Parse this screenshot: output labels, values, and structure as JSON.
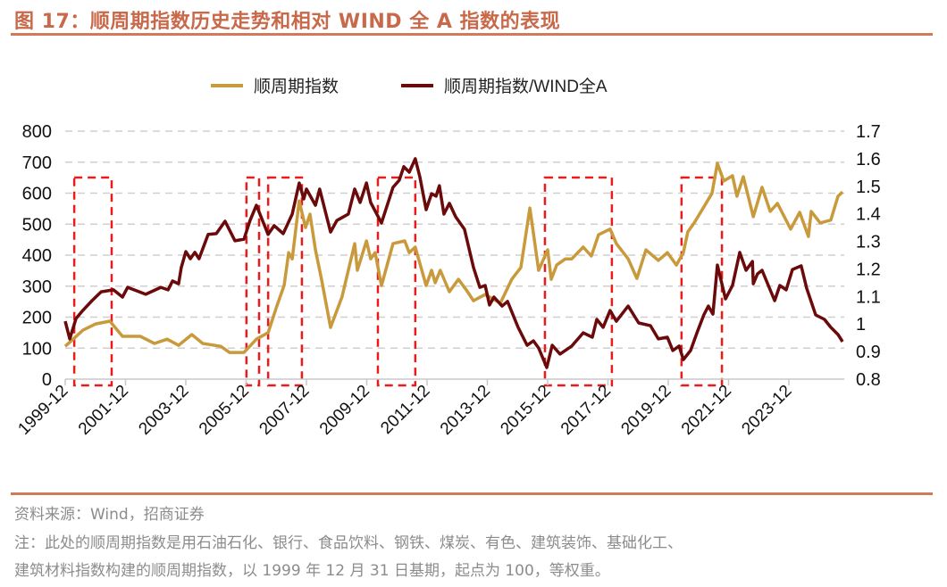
{
  "header": {
    "title": "图 17：顺周期指数历史走势和相对 WIND 全 A 指数的表现"
  },
  "footer": {
    "source": "资料来源：Wind，招商证券",
    "note_line1": "注：此处的顺周期指数是用石油石化、银行、食品饮料、钢铁、煤炭、有色、建筑装饰、基础化工、",
    "note_line2": "建筑材料指数构建的顺周期指数，以 1999 年 12 月 31 日基期，起点为 100，等权重。"
  },
  "chart_data": {
    "type": "line",
    "title": "",
    "xlabel": "",
    "ylabel": "",
    "y2label": "",
    "x_unit": "decimal year",
    "xlim": [
      1999.92,
      2025.72
    ],
    "ylim": [
      0,
      800
    ],
    "y2lim": [
      0.8,
      1.7
    ],
    "y_ticks": [
      "0",
      "100",
      "200",
      "300",
      "400",
      "500",
      "600",
      "700",
      "800"
    ],
    "y2_ticks": [
      "0.8",
      "0.9",
      "1",
      "1.1",
      "1.2",
      "1.3",
      "1.4",
      "1.5",
      "1.6",
      "1.7"
    ],
    "x_ticks": [
      {
        "t": 1999.92,
        "label": "1999-12"
      },
      {
        "t": 2001.92,
        "label": "2001-12"
      },
      {
        "t": 2003.92,
        "label": "2003-12"
      },
      {
        "t": 2005.92,
        "label": "2005-12"
      },
      {
        "t": 2007.92,
        "label": "2007-12"
      },
      {
        "t": 2009.92,
        "label": "2009-12"
      },
      {
        "t": 2011.92,
        "label": "2011-12"
      },
      {
        "t": 2013.92,
        "label": "2013-12"
      },
      {
        "t": 2015.92,
        "label": "2015-12"
      },
      {
        "t": 2017.92,
        "label": "2017-12"
      },
      {
        "t": 2019.92,
        "label": "2019-12"
      },
      {
        "t": 2021.92,
        "label": "2021-12"
      },
      {
        "t": 2023.92,
        "label": "2023-12"
      }
    ],
    "grid": true,
    "legend_position": "top-center",
    "series": [
      {
        "name": "顺周期指数",
        "axis": "left",
        "color": "#c99a3c",
        "points": [
          [
            1999.92,
            106
          ],
          [
            2000.51,
            158
          ],
          [
            2000.93,
            178
          ],
          [
            2001.4,
            187
          ],
          [
            2001.82,
            138
          ],
          [
            2002.41,
            138
          ],
          [
            2002.88,
            115
          ],
          [
            2003.3,
            129
          ],
          [
            2003.68,
            109
          ],
          [
            2004.12,
            144
          ],
          [
            2004.48,
            115
          ],
          [
            2005.08,
            106
          ],
          [
            2005.37,
            86
          ],
          [
            2005.85,
            86
          ],
          [
            2006.26,
            129
          ],
          [
            2006.65,
            150
          ],
          [
            2006.94,
            236
          ],
          [
            2007.18,
            302
          ],
          [
            2007.33,
            408
          ],
          [
            2007.45,
            388
          ],
          [
            2007.68,
            575
          ],
          [
            2007.89,
            489
          ],
          [
            2008.04,
            532
          ],
          [
            2008.22,
            417
          ],
          [
            2008.42,
            322
          ],
          [
            2008.72,
            167
          ],
          [
            2009.1,
            265
          ],
          [
            2009.52,
            437
          ],
          [
            2009.61,
            351
          ],
          [
            2009.91,
            446
          ],
          [
            2010.05,
            388
          ],
          [
            2010.2,
            408
          ],
          [
            2010.41,
            302
          ],
          [
            2010.79,
            437
          ],
          [
            2011.18,
            446
          ],
          [
            2011.33,
            408
          ],
          [
            2011.53,
            426
          ],
          [
            2011.89,
            302
          ],
          [
            2012.07,
            351
          ],
          [
            2012.19,
            311
          ],
          [
            2012.36,
            351
          ],
          [
            2012.66,
            282
          ],
          [
            2012.96,
            322
          ],
          [
            2013.22,
            288
          ],
          [
            2013.46,
            253
          ],
          [
            2013.85,
            273
          ],
          [
            2014.35,
            245
          ],
          [
            2014.73,
            322
          ],
          [
            2015.03,
            360
          ],
          [
            2015.33,
            552
          ],
          [
            2015.62,
            351
          ],
          [
            2015.92,
            417
          ],
          [
            2016.04,
            322
          ],
          [
            2016.22,
            368
          ],
          [
            2016.51,
            388
          ],
          [
            2016.72,
            388
          ],
          [
            2017.1,
            426
          ],
          [
            2017.37,
            397
          ],
          [
            2017.61,
            466
          ],
          [
            2017.99,
            484
          ],
          [
            2018.2,
            437
          ],
          [
            2018.59,
            388
          ],
          [
            2018.88,
            325
          ],
          [
            2019.18,
            417
          ],
          [
            2019.59,
            383
          ],
          [
            2019.89,
            408
          ],
          [
            2020.19,
            368
          ],
          [
            2020.42,
            408
          ],
          [
            2020.57,
            475
          ],
          [
            2020.78,
            504
          ],
          [
            2021.08,
            552
          ],
          [
            2021.37,
            599
          ],
          [
            2021.55,
            696
          ],
          [
            2021.76,
            639
          ],
          [
            2022.05,
            656
          ],
          [
            2022.2,
            590
          ],
          [
            2022.41,
            653
          ],
          [
            2022.74,
            524
          ],
          [
            2023.03,
            619
          ],
          [
            2023.3,
            541
          ],
          [
            2023.54,
            567
          ],
          [
            2023.98,
            484
          ],
          [
            2024.28,
            538
          ],
          [
            2024.57,
            460
          ],
          [
            2024.66,
            541
          ],
          [
            2024.96,
            504
          ],
          [
            2025.31,
            513
          ],
          [
            2025.55,
            590
          ],
          [
            2025.7,
            604
          ]
        ]
      },
      {
        "name": "顺周期指数/WIND全A",
        "axis": "right",
        "color": "#6b0a0a",
        "points": [
          [
            1999.92,
            1.01
          ],
          [
            2000.07,
            0.946
          ],
          [
            2000.28,
            1.02
          ],
          [
            2000.51,
            1.05
          ],
          [
            2000.81,
            1.085
          ],
          [
            2001.11,
            1.117
          ],
          [
            2001.52,
            1.124
          ],
          [
            2001.82,
            1.098
          ],
          [
            2001.99,
            1.133
          ],
          [
            2002.59,
            1.108
          ],
          [
            2003.09,
            1.133
          ],
          [
            2003.33,
            1.124
          ],
          [
            2003.48,
            1.156
          ],
          [
            2003.68,
            1.146
          ],
          [
            2003.77,
            1.205
          ],
          [
            2003.92,
            1.263
          ],
          [
            2004.07,
            1.237
          ],
          [
            2004.22,
            1.26
          ],
          [
            2004.36,
            1.237
          ],
          [
            2004.66,
            1.325
          ],
          [
            2004.93,
            1.328
          ],
          [
            2005.22,
            1.373
          ],
          [
            2005.55,
            1.302
          ],
          [
            2005.85,
            1.308
          ],
          [
            2006.05,
            1.376
          ],
          [
            2006.26,
            1.431
          ],
          [
            2006.65,
            1.325
          ],
          [
            2006.85,
            1.357
          ],
          [
            2007.15,
            1.328
          ],
          [
            2007.45,
            1.399
          ],
          [
            2007.68,
            1.512
          ],
          [
            2007.83,
            1.454
          ],
          [
            2007.92,
            1.49
          ],
          [
            2008.22,
            1.431
          ],
          [
            2008.36,
            1.49
          ],
          [
            2008.72,
            1.334
          ],
          [
            2008.93,
            1.376
          ],
          [
            2009.31,
            1.399
          ],
          [
            2009.52,
            1.49
          ],
          [
            2009.7,
            1.441
          ],
          [
            2009.91,
            1.512
          ],
          [
            2010.05,
            1.441
          ],
          [
            2010.41,
            1.367
          ],
          [
            2010.79,
            1.496
          ],
          [
            2011.0,
            1.522
          ],
          [
            2011.15,
            1.571
          ],
          [
            2011.33,
            1.551
          ],
          [
            2011.53,
            1.6
          ],
          [
            2011.68,
            1.535
          ],
          [
            2011.89,
            1.415
          ],
          [
            2012.07,
            1.473
          ],
          [
            2012.22,
            1.464
          ],
          [
            2012.33,
            1.502
          ],
          [
            2012.48,
            1.399
          ],
          [
            2012.66,
            1.438
          ],
          [
            2012.87,
            1.389
          ],
          [
            2013.16,
            1.344
          ],
          [
            2013.46,
            1.205
          ],
          [
            2013.67,
            1.133
          ],
          [
            2013.85,
            1.14
          ],
          [
            2013.99,
            1.069
          ],
          [
            2014.14,
            1.098
          ],
          [
            2014.41,
            1.065
          ],
          [
            2014.59,
            1.082
          ],
          [
            2014.94,
            0.988
          ],
          [
            2015.24,
            0.923
          ],
          [
            2015.45,
            0.939
          ],
          [
            2015.62,
            0.913
          ],
          [
            2015.89,
            0.842
          ],
          [
            2016.07,
            0.923
          ],
          [
            2016.33,
            0.891
          ],
          [
            2016.72,
            0.92
          ],
          [
            2017.1,
            0.968
          ],
          [
            2017.4,
            0.952
          ],
          [
            2017.55,
            1.017
          ],
          [
            2017.76,
            0.988
          ],
          [
            2017.99,
            1.049
          ],
          [
            2018.2,
            1.01
          ],
          [
            2018.59,
            1.065
          ],
          [
            2018.94,
            1.004
          ],
          [
            2019.33,
            0.994
          ],
          [
            2019.59,
            0.946
          ],
          [
            2019.89,
            0.952
          ],
          [
            2020.07,
            0.904
          ],
          [
            2020.28,
            0.92
          ],
          [
            2020.42,
            0.871
          ],
          [
            2020.66,
            0.904
          ],
          [
            2020.87,
            0.968
          ],
          [
            2021.1,
            1.033
          ],
          [
            2021.25,
            1.065
          ],
          [
            2021.4,
            1.036
          ],
          [
            2021.55,
            1.214
          ],
          [
            2021.82,
            1.091
          ],
          [
            2022.05,
            1.14
          ],
          [
            2022.29,
            1.26
          ],
          [
            2022.5,
            1.195
          ],
          [
            2022.71,
            1.227
          ],
          [
            2022.74,
            1.146
          ],
          [
            2022.88,
            1.182
          ],
          [
            2023.03,
            1.195
          ],
          [
            2023.45,
            1.085
          ],
          [
            2023.62,
            1.14
          ],
          [
            2023.83,
            1.124
          ],
          [
            2024.04,
            1.198
          ],
          [
            2024.33,
            1.211
          ],
          [
            2024.51,
            1.13
          ],
          [
            2024.81,
            1.033
          ],
          [
            2025.1,
            1.017
          ],
          [
            2025.31,
            0.988
          ],
          [
            2025.55,
            0.962
          ],
          [
            2025.7,
            0.936
          ]
        ]
      }
    ],
    "highlight_periods": [
      [
        2000.22,
        2001.46
      ],
      [
        2005.93,
        2006.35
      ],
      [
        2006.65,
        2007.77
      ],
      [
        2010.29,
        2011.53
      ],
      [
        2015.83,
        2018.05
      ],
      [
        2020.36,
        2021.7
      ]
    ],
    "highlight_color": "#e81c1c"
  }
}
